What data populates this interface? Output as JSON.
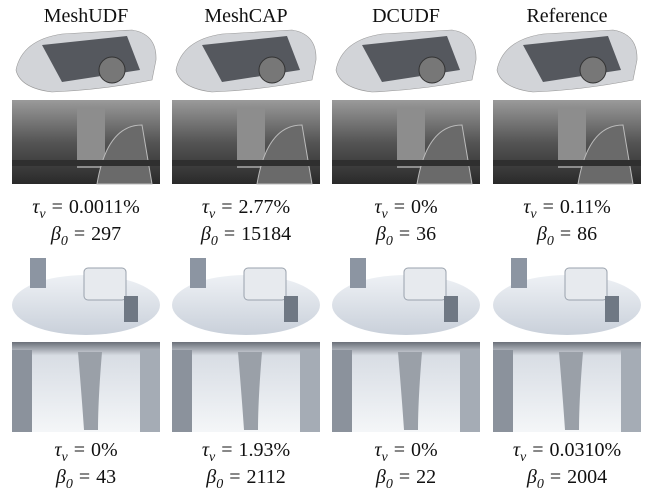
{
  "columns": [
    "MeshUDF",
    "MeshCAP",
    "DCUDF",
    "Reference"
  ],
  "symbols": {
    "tau": "τ",
    "tau_sub": "v",
    "beta": "β",
    "beta_sub": "0",
    "equals": "="
  },
  "groups": [
    {
      "metrics": [
        {
          "tau": "0.0011%",
          "beta": "297"
        },
        {
          "tau": "2.77%",
          "beta": "15184"
        },
        {
          "tau": "0%",
          "beta": "36"
        },
        {
          "tau": "0.11%",
          "beta": "86"
        }
      ]
    },
    {
      "metrics": [
        {
          "tau": "0%",
          "beta": "43"
        },
        {
          "tau": "1.93%",
          "beta": "2112"
        },
        {
          "tau": "0%",
          "beta": "22"
        },
        {
          "tau": "0.0310%",
          "beta": "2004"
        }
      ]
    }
  ]
}
